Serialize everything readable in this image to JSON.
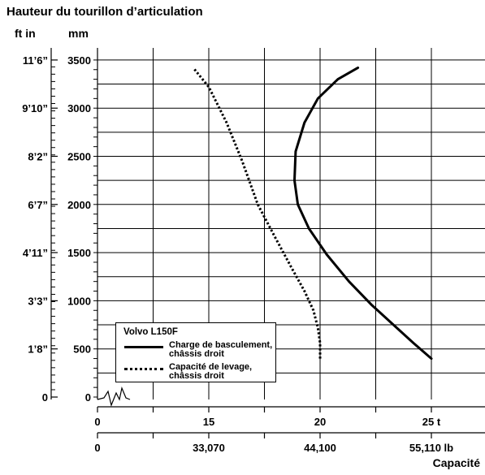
{
  "header": {
    "title": "Hauteur du tourillon d’articulation",
    "unit_imperial": "ft in",
    "unit_metric": "mm"
  },
  "legend": {
    "title": "Volvo L150F",
    "items": [
      {
        "label_line1": "Charge de basculement,",
        "label_line2": "châssis droit",
        "style": "solid"
      },
      {
        "label_line1": "Capacité de levage,",
        "label_line2": "châssis droit",
        "style": "dotted"
      }
    ]
  },
  "footer": {
    "axis_title": "Capacité"
  },
  "chart_data": {
    "type": "line",
    "x_unit": "t",
    "y_unit": "mm",
    "xlim": [
      10,
      25
    ],
    "ylim": [
      0,
      3500
    ],
    "grid": true,
    "y_ticks_mm": [
      "0",
      "500",
      "1000",
      "1500",
      "2000",
      "2500",
      "3000",
      "3500"
    ],
    "y_ticks_ft": [
      {
        "label": "11’6”",
        "mm": 3500
      },
      {
        "label": "9’10”",
        "mm": 3000
      },
      {
        "label": "8’2”",
        "mm": 2500
      },
      {
        "label": "6’7”",
        "mm": 2000
      },
      {
        "label": "4’11”",
        "mm": 1500
      },
      {
        "label": "3’3”",
        "mm": 1000
      },
      {
        "label": "1’8”",
        "mm": 500
      },
      {
        "label": "0",
        "mm": 0
      }
    ],
    "x_ticks_t": [
      {
        "label": "0",
        "t": 10
      },
      {
        "label": "15",
        "t": 15
      },
      {
        "label": "20",
        "t": 20
      },
      {
        "label": "25 t",
        "t": 25
      }
    ],
    "x_ticks_lb": [
      {
        "label": "0",
        "t": 10
      },
      {
        "label": "33,070",
        "t": 15
      },
      {
        "label": "44,100",
        "t": 20
      },
      {
        "label": "55,110 lb",
        "t": 25
      }
    ],
    "series": [
      {
        "name": "Charge de basculement, châssis droit",
        "style": "solid",
        "points": [
          [
            25,
            400
          ],
          [
            24.2,
            560
          ],
          [
            23.3,
            750
          ],
          [
            22.3,
            960
          ],
          [
            21.3,
            1200
          ],
          [
            20.3,
            1480
          ],
          [
            19.5,
            1750
          ],
          [
            19.0,
            2000
          ],
          [
            18.85,
            2250
          ],
          [
            18.9,
            2550
          ],
          [
            19.3,
            2850
          ],
          [
            19.9,
            3100
          ],
          [
            20.8,
            3300
          ],
          [
            21.7,
            3420
          ]
        ]
      },
      {
        "name": "Capacité de levage, châssis droit",
        "style": "dotted",
        "points": [
          [
            20.0,
            400
          ],
          [
            20.0,
            560
          ],
          [
            19.9,
            720
          ],
          [
            19.7,
            900
          ],
          [
            19.3,
            1100
          ],
          [
            18.7,
            1350
          ],
          [
            18.0,
            1650
          ],
          [
            17.2,
            2000
          ],
          [
            16.5,
            2450
          ],
          [
            15.8,
            2850
          ],
          [
            15.0,
            3220
          ],
          [
            14.3,
            3420
          ]
        ]
      }
    ]
  }
}
